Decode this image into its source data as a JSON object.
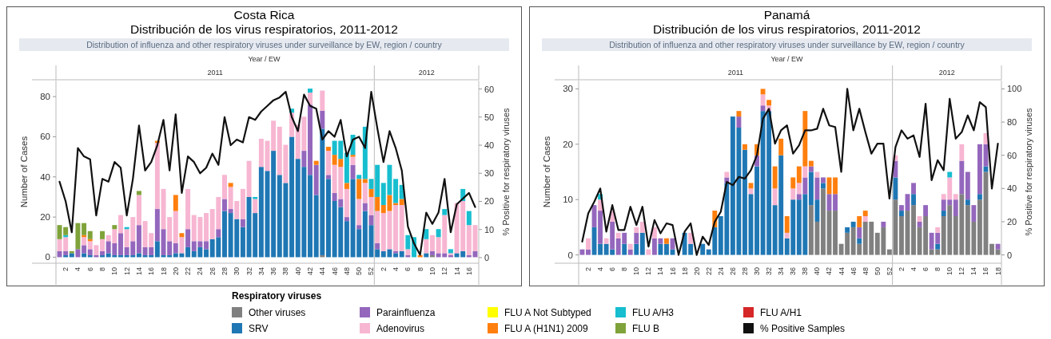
{
  "chart_data": [
    {
      "type": "bar",
      "stacked": true,
      "title": "Costa Rica",
      "subtitle": "Distribución de los virus respiratorios, 2011-2012",
      "annotations": [
        "Distribution of influenza and other respiratory viruses under surveillance by EW, region / country",
        "Year / EW",
        "2011",
        "2012"
      ],
      "ylabel": "Number of Cases",
      "y2label": "% Positive for respiratory viruses",
      "legend": "bottom",
      "legend_title": "Respiratory viruses",
      "ylim": [
        -3,
        88
      ],
      "yticks": [
        0,
        20,
        40,
        60,
        80
      ],
      "y2lim": [
        -2,
        63
      ],
      "y2ticks": [
        0,
        10,
        20,
        30,
        40,
        50,
        60
      ],
      "categories": [
        null,
        "2",
        null,
        "4",
        null,
        "6",
        null,
        "8",
        null,
        "10",
        null,
        "12",
        null,
        "14",
        null,
        "16",
        null,
        "18",
        null,
        "20",
        null,
        "22",
        null,
        "24",
        null,
        "26",
        null,
        "28",
        null,
        "30",
        null,
        "32",
        null,
        "34",
        null,
        "36",
        null,
        "38",
        null,
        "40",
        null,
        "42",
        null,
        "44",
        null,
        "46",
        null,
        "48",
        null,
        "50",
        null,
        "52",
        null,
        "2",
        null,
        "4",
        null,
        "6",
        null,
        "8",
        null,
        "10",
        null,
        "12",
        null,
        "14",
        null,
        "16",
        null
      ],
      "series": [
        {
          "name": "Other viruses",
          "color": "#808080",
          "values": [
            0,
            0,
            0,
            0,
            0,
            0,
            0,
            0,
            0,
            0,
            0,
            0,
            0,
            0,
            0,
            0,
            0,
            0,
            0,
            0,
            0,
            0,
            0,
            0,
            0,
            0,
            0,
            0,
            0,
            0,
            0,
            0,
            0,
            0,
            0,
            0,
            0,
            0,
            0,
            0,
            0,
            0,
            0,
            1,
            0,
            0,
            0,
            0,
            0,
            0,
            0,
            0,
            0,
            0,
            0,
            0,
            0,
            0,
            0,
            0,
            0,
            1,
            0,
            0,
            0,
            0,
            0,
            0,
            0
          ]
        },
        {
          "name": "SRV",
          "color": "#1f77b4",
          "values": [
            0,
            1,
            2,
            0,
            2,
            1,
            0,
            1,
            2,
            1,
            1,
            1,
            1,
            2,
            1,
            1,
            8,
            1,
            1,
            2,
            2,
            5,
            3,
            5,
            4,
            9,
            10,
            23,
            22,
            19,
            15,
            30,
            22,
            45,
            43,
            53,
            41,
            37,
            60,
            49,
            45,
            41,
            31,
            63,
            39,
            28,
            25,
            18,
            39,
            14,
            23,
            16,
            4,
            3,
            4,
            2,
            3,
            0,
            0,
            0,
            2,
            0,
            0,
            0,
            0,
            2,
            3,
            0,
            0
          ]
        },
        {
          "name": "Parainfluenza",
          "color": "#9467bd",
          "values": [
            3,
            2,
            0,
            4,
            4,
            3,
            1,
            2,
            6,
            6,
            11,
            4,
            7,
            14,
            4,
            4,
            16,
            13,
            7,
            5,
            0,
            9,
            5,
            3,
            4,
            0,
            4,
            6,
            2,
            0,
            4,
            0,
            0,
            0,
            0,
            0,
            0,
            0,
            0,
            0,
            8,
            35,
            15,
            9,
            2,
            4,
            4,
            2,
            7,
            2,
            4,
            5,
            3,
            0,
            0,
            1,
            0,
            1,
            0,
            0,
            0,
            2,
            2,
            2,
            1,
            0,
            0,
            1,
            3
          ]
        },
        {
          "name": "Adenovirus",
          "color": "#f7b6d2",
          "values": [
            6,
            7,
            0,
            0,
            4,
            4,
            5,
            6,
            3,
            7,
            9,
            9,
            12,
            15,
            13,
            7,
            33,
            20,
            12,
            16,
            8,
            20,
            13,
            12,
            14,
            15,
            16,
            12,
            11,
            9,
            15,
            18,
            7,
            14,
            15,
            15,
            24,
            19,
            12,
            17,
            17,
            6,
            0,
            10,
            12,
            14,
            16,
            14,
            4,
            13,
            10,
            9,
            16,
            19,
            19,
            23,
            23,
            3,
            0,
            0,
            7,
            8,
            8,
            19,
            1,
            25,
            25,
            15,
            13
          ]
        },
        {
          "name": "FLU A Not Subtyped",
          "color": "#ffff00",
          "values": [
            null,
            null,
            null,
            null,
            null,
            null,
            null,
            null,
            null,
            null,
            null,
            null,
            null,
            null,
            null,
            null,
            null,
            null,
            null,
            null,
            null,
            null,
            null,
            null,
            null,
            null,
            null,
            null,
            null,
            null,
            null,
            null,
            null,
            null,
            null,
            null,
            null,
            null,
            null,
            null,
            null,
            null,
            null,
            null,
            null,
            null,
            null,
            null,
            null,
            null,
            null,
            null,
            null,
            null,
            null,
            null,
            null,
            null,
            null,
            null,
            null,
            null,
            null,
            null,
            null,
            null,
            null,
            null,
            null
          ]
        },
        {
          "name": "FLU A (H1N1) 2009",
          "color": "#ff7f0e",
          "values": [
            0,
            0,
            0,
            0,
            1,
            1,
            0,
            0,
            0,
            0,
            0,
            0,
            0,
            0,
            0,
            0,
            1,
            0,
            0,
            8,
            2,
            0,
            0,
            0,
            0,
            0,
            0,
            0,
            2,
            0,
            0,
            0,
            0,
            0,
            0,
            0,
            0,
            0,
            null,
            0,
            0,
            0,
            2,
            0,
            2,
            5,
            4,
            3,
            1,
            10,
            2,
            4,
            7,
            4,
            8,
            1,
            3,
            0,
            0,
            1,
            0,
            0,
            0,
            0,
            0,
            0,
            0,
            0,
            0
          ]
        },
        {
          "name": "FLU A/H3",
          "color": "#17becf",
          "values": [
            0,
            1,
            0,
            0,
            0,
            0,
            0,
            0,
            0,
            0,
            0,
            1,
            0,
            0,
            0,
            0,
            0,
            0,
            0,
            0,
            0,
            0,
            0,
            0,
            0,
            0,
            0,
            0,
            0,
            0,
            0,
            0,
            1,
            0,
            0,
            0,
            0,
            0,
            2,
            0,
            0,
            2,
            0,
            0,
            0,
            7,
            9,
            15,
            10,
            2,
            26,
            5,
            16,
            11,
            15,
            12,
            7,
            7,
            10,
            0,
            5,
            0,
            4,
            3,
            2,
            0,
            6,
            7,
            0
          ]
        },
        {
          "name": "FLU B",
          "color": "#7fa33a",
          "values": [
            7,
            4,
            1,
            13,
            6,
            4,
            0,
            4,
            0,
            2,
            0,
            0,
            0,
            2,
            0,
            0,
            0,
            0,
            0,
            0,
            0,
            0,
            0,
            0,
            0,
            0,
            0,
            0,
            0,
            0,
            0,
            0,
            0,
            0,
            0,
            0,
            0,
            0,
            0,
            0,
            0,
            0,
            0,
            0,
            0,
            0,
            0,
            0,
            0,
            0,
            0,
            0,
            0,
            0,
            0,
            0,
            0,
            0,
            0,
            0,
            0,
            0,
            0,
            0,
            0,
            0,
            0,
            0,
            0
          ]
        },
        {
          "name": "FLU A/H1",
          "color": "#d62728",
          "values": [
            null,
            null,
            null,
            null,
            null,
            null,
            null,
            null,
            null,
            null,
            null,
            null,
            null,
            null,
            null,
            null,
            null,
            null,
            null,
            null,
            null,
            null,
            null,
            null,
            null,
            null,
            null,
            null,
            null,
            null,
            null,
            null,
            null,
            null,
            null,
            null,
            null,
            null,
            null,
            null,
            null,
            null,
            null,
            null,
            null,
            null,
            null,
            null,
            null,
            null,
            null,
            null,
            null,
            null,
            null,
            null,
            null,
            null,
            null,
            null,
            null,
            null,
            null,
            null,
            null,
            null,
            null,
            null,
            null
          ]
        },
        {
          "name": "% Positive Samples",
          "type": "line",
          "axis": "y2",
          "color": "#111111",
          "values": [
            27,
            20,
            9,
            39,
            36,
            35,
            15,
            28,
            27,
            34,
            32,
            15,
            28,
            47,
            31,
            34,
            40,
            49,
            31,
            51,
            23,
            36,
            34,
            30,
            32,
            37,
            33,
            50,
            40,
            42,
            41,
            50,
            49,
            52,
            54,
            56,
            57,
            59,
            50,
            45,
            58,
            54,
            53,
            42,
            45,
            43,
            49,
            36,
            42,
            43,
            39,
            59,
            46,
            34,
            45,
            39,
            31,
            11,
            5,
            1,
            16,
            12,
            16,
            28,
            9,
            19,
            21,
            23,
            18
          ]
        }
      ]
    },
    {
      "type": "bar",
      "stacked": true,
      "title": "Panamá",
      "subtitle": "Distribución de los virus respiratorios, 2011-2012",
      "annotations": [
        "Distribution of influenza and other respiratory viruses under surveillance by EW, region / country",
        "Year / EW",
        "2011",
        "2012"
      ],
      "ylabel": "Number of Cases",
      "y2label": "% Positive for respiratory viruses",
      "ylim": [
        -1.5,
        31.5
      ],
      "yticks": [
        0,
        10,
        20,
        30
      ],
      "y2lim": [
        -5,
        105
      ],
      "y2ticks": [
        0,
        20,
        40,
        60,
        80,
        100
      ],
      "categories": [
        null,
        "2",
        null,
        "4",
        null,
        "6",
        null,
        "8",
        null,
        "10",
        null,
        "12",
        null,
        "14",
        null,
        "16",
        null,
        "18",
        null,
        "20",
        null,
        "22",
        null,
        "24",
        null,
        "26",
        null,
        "28",
        null,
        "30",
        null,
        "32",
        null,
        "34",
        null,
        "36",
        null,
        "38",
        null,
        "40",
        null,
        "42",
        null,
        "44",
        null,
        "46",
        null,
        "48",
        null,
        "50",
        null,
        "52",
        null,
        "2",
        null,
        "4",
        null,
        "6",
        null,
        "8",
        null,
        "10",
        null,
        "12",
        null,
        "14",
        null,
        "16",
        null,
        "18"
      ],
      "series": [
        {
          "color": "#808080",
          "values": [
            0,
            0,
            0,
            0,
            0,
            0,
            0,
            0,
            0,
            0,
            0,
            0,
            0,
            0,
            0,
            0,
            0,
            0,
            0,
            0,
            0,
            0,
            0,
            0,
            0,
            0,
            0,
            0,
            0,
            0,
            0,
            0,
            0,
            0,
            0,
            0,
            0,
            0,
            9,
            6,
            12,
            8,
            8,
            2,
            4,
            5,
            2,
            6,
            6,
            4,
            5,
            1,
            10,
            7,
            8,
            9,
            5,
            7,
            1,
            1,
            7,
            9,
            7,
            11,
            9,
            6,
            10,
            15,
            2,
            1
          ]
        },
        {
          "color": "#1f77b4",
          "values": [
            0,
            0,
            5,
            2,
            2,
            1,
            0,
            2,
            0,
            2,
            4,
            0,
            0,
            2,
            2,
            1,
            0,
            4,
            2,
            0,
            2,
            1,
            5,
            7,
            13,
            25,
            23,
            19,
            11,
            16,
            26,
            26,
            9,
            18,
            3,
            10,
            10,
            11,
            6,
            4,
            1,
            0,
            0,
            0,
            1,
            1,
            1,
            0,
            0,
            0,
            0,
            0,
            4,
            1,
            0,
            2,
            0,
            0,
            0,
            1,
            1,
            0,
            0,
            0,
            1,
            0,
            1,
            1,
            0,
            0
          ]
        },
        {
          "color": "#9467bd",
          "values": [
            1,
            1,
            4,
            6,
            0,
            5,
            3,
            2,
            1,
            2,
            0,
            0,
            3,
            1,
            0,
            2,
            0,
            0,
            0,
            0,
            0,
            0,
            0,
            0,
            1,
            0,
            2,
            0,
            0,
            2,
            1,
            0,
            0,
            0,
            0,
            0,
            1,
            3,
            1,
            4,
            1,
            3,
            3,
            0,
            0,
            0,
            2,
            0,
            0,
            0,
            1,
            0,
            3,
            1,
            3,
            2,
            1,
            2,
            3,
            2,
            2,
            1,
            3,
            6,
            5,
            3,
            9,
            4,
            0,
            1
          ]
        },
        {
          "color": "#f7b6d2",
          "values": [
            0,
            2,
            0,
            2,
            1,
            2,
            1,
            0,
            1,
            1,
            2,
            1,
            2,
            0,
            0,
            0,
            0,
            0,
            2,
            0,
            0,
            0,
            0,
            0,
            1,
            0,
            0,
            0,
            1,
            0,
            2,
            1,
            3,
            0,
            1,
            2,
            2,
            2,
            0,
            1,
            0,
            0,
            0,
            0,
            0,
            0,
            0,
            1,
            0,
            0,
            0,
            0,
            1,
            0,
            0,
            0,
            1,
            0,
            0,
            1,
            1,
            4,
            1,
            3,
            0,
            0,
            0,
            2,
            0,
            0
          ]
        },
        {
          "color": "#ff7f0e",
          "values": [
            0,
            0,
            0,
            0,
            0,
            0,
            0,
            0,
            0,
            0,
            0,
            0,
            0,
            0,
            1,
            0,
            0,
            0,
            0,
            0,
            0,
            0,
            3,
            0,
            0,
            0,
            1,
            1,
            1,
            2,
            1,
            1,
            4,
            3,
            3,
            2,
            3,
            10,
            1,
            0,
            0,
            3,
            3,
            0,
            0,
            0,
            2,
            1,
            0,
            0,
            0,
            0,
            0,
            0,
            0,
            0,
            0,
            0,
            0,
            0,
            0,
            0,
            0,
            0,
            0,
            0,
            0,
            0,
            0,
            0
          ]
        },
        {
          "color": "#17becf",
          "values": [
            0,
            0,
            0,
            1,
            0,
            0,
            0,
            0,
            0,
            0,
            0,
            0,
            0,
            0,
            0,
            0,
            0,
            0,
            0,
            0,
            0,
            0,
            0,
            0,
            0,
            0,
            0,
            0,
            0,
            0,
            0,
            0,
            0,
            0,
            0,
            0,
            0,
            0,
            0,
            0,
            0,
            0,
            0,
            0,
            0,
            0,
            0,
            0,
            0,
            0,
            0,
            0,
            0,
            0,
            0,
            0,
            0,
            0,
            0,
            0,
            0,
            1,
            0,
            0,
            0,
            0,
            0,
            0,
            0,
            0
          ]
        },
        {
          "type": "line",
          "axis": "y2",
          "color": "#111111",
          "values": [
            8,
            25,
            32,
            40,
            14,
            30,
            15,
            15,
            29,
            18,
            29,
            5,
            21,
            13,
            19,
            18,
            0,
            14,
            19,
            0,
            11,
            6,
            20,
            26,
            44,
            42,
            47,
            46,
            51,
            60,
            82,
            88,
            67,
            75,
            78,
            61,
            66,
            75,
            75,
            76,
            88,
            78,
            77,
            50,
            100,
            75,
            88,
            74,
            61,
            67,
            67,
            34,
            65,
            75,
            70,
            72,
            59,
            91,
            45,
            57,
            51,
            94,
            70,
            74,
            84,
            75,
            92,
            89,
            40,
            67
          ]
        }
      ]
    }
  ]
}
